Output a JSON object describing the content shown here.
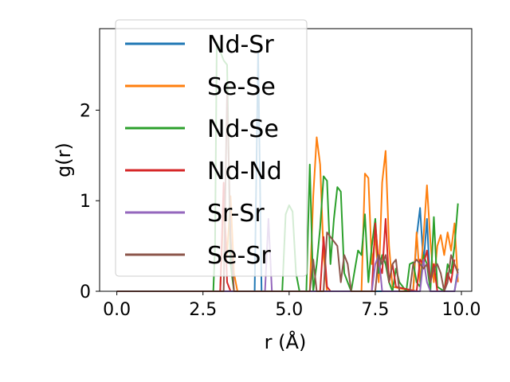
{
  "chart_data": {
    "type": "line",
    "title": "",
    "xlabel": "r (Å)",
    "ylabel": "g(r)",
    "xlim": [
      -0.5,
      10.3
    ],
    "ylim": [
      0,
      2.9
    ],
    "xticks": [
      0.0,
      2.5,
      5.0,
      7.5,
      10.0
    ],
    "xtick_labels": [
      "0.0",
      "2.5",
      "5.0",
      "7.5",
      "10.0"
    ],
    "yticks": [
      0,
      1,
      2
    ],
    "ytick_labels": [
      "0",
      "1",
      "2"
    ],
    "grid": false,
    "legend_position": "upper-left",
    "series": [
      {
        "name": "Nd-Sr",
        "color": "#1f77b4",
        "points": [
          [
            0,
            0
          ],
          [
            4.0,
            0
          ],
          [
            4.1,
            2.65
          ],
          [
            4.2,
            0
          ],
          [
            8.6,
            0
          ],
          [
            8.7,
            0.6
          ],
          [
            8.8,
            0.92
          ],
          [
            8.9,
            0.3
          ],
          [
            9.0,
            0.8
          ],
          [
            9.1,
            0
          ],
          [
            9.8,
            0
          ],
          [
            9.9,
            0.25
          ]
        ]
      },
      {
        "name": "Se-Se",
        "color": "#ff7f0e",
        "points": [
          [
            0,
            0
          ],
          [
            3.0,
            0
          ],
          [
            3.1,
            0.95
          ],
          [
            3.2,
            0.4
          ],
          [
            3.3,
            1.05
          ],
          [
            3.4,
            0.2
          ],
          [
            3.5,
            0
          ],
          [
            5.6,
            0
          ],
          [
            5.7,
            1.05
          ],
          [
            5.8,
            1.7
          ],
          [
            5.9,
            1.4
          ],
          [
            6.0,
            0.4
          ],
          [
            6.1,
            0
          ],
          [
            7.1,
            0
          ],
          [
            7.2,
            1.3
          ],
          [
            7.3,
            1.25
          ],
          [
            7.4,
            0.3
          ],
          [
            7.5,
            0.6
          ],
          [
            7.6,
            0.1
          ],
          [
            7.7,
            1.2
          ],
          [
            7.8,
            1.55
          ],
          [
            7.9,
            0.5
          ],
          [
            8.0,
            0.05
          ],
          [
            8.6,
            0
          ],
          [
            8.7,
            0.65
          ],
          [
            8.8,
            0.1
          ],
          [
            8.9,
            0.6
          ],
          [
            9.0,
            1.17
          ],
          [
            9.1,
            0.55
          ],
          [
            9.2,
            0.1
          ],
          [
            9.3,
            0.5
          ],
          [
            9.4,
            0.62
          ],
          [
            9.5,
            0.4
          ],
          [
            9.6,
            0.65
          ],
          [
            9.7,
            0.45
          ],
          [
            9.8,
            0.75
          ],
          [
            9.9,
            0.1
          ]
        ]
      },
      {
        "name": "Nd-Se",
        "color": "#2ca02c",
        "points": [
          [
            0,
            0
          ],
          [
            2.8,
            0
          ],
          [
            2.85,
            0.5
          ],
          [
            2.9,
            2.75
          ],
          [
            3.0,
            2.65
          ],
          [
            3.1,
            2.55
          ],
          [
            3.2,
            2.5
          ],
          [
            3.3,
            0.3
          ],
          [
            3.4,
            0
          ],
          [
            4.8,
            0
          ],
          [
            4.9,
            0.85
          ],
          [
            5.0,
            0.95
          ],
          [
            5.1,
            0.88
          ],
          [
            5.2,
            0.2
          ],
          [
            5.3,
            0
          ],
          [
            5.5,
            0
          ],
          [
            5.6,
            1.4
          ],
          [
            5.7,
            0
          ],
          [
            5.8,
            0.3
          ],
          [
            5.9,
            0.7
          ],
          [
            6.0,
            1.27
          ],
          [
            6.1,
            1.22
          ],
          [
            6.2,
            0.3
          ],
          [
            6.3,
            0.8
          ],
          [
            6.4,
            1.15
          ],
          [
            6.5,
            1.1
          ],
          [
            6.6,
            0.2
          ],
          [
            6.8,
            0
          ],
          [
            7.0,
            0.45
          ],
          [
            7.1,
            0.4
          ],
          [
            7.2,
            0.85
          ],
          [
            7.3,
            0.1
          ],
          [
            7.4,
            0.5
          ],
          [
            7.5,
            0.8
          ],
          [
            7.6,
            0.2
          ],
          [
            7.7,
            0.4
          ],
          [
            7.8,
            0.3
          ],
          [
            7.9,
            0.1
          ],
          [
            8.0,
            0
          ],
          [
            8.1,
            0.25
          ],
          [
            8.2,
            0.1
          ],
          [
            8.4,
            0
          ],
          [
            8.5,
            0.3
          ],
          [
            8.6,
            0.32
          ],
          [
            8.7,
            0.1
          ],
          [
            8.8,
            0.05
          ],
          [
            8.9,
            0.4
          ],
          [
            9.0,
            0.3
          ],
          [
            9.1,
            0
          ],
          [
            9.2,
            0.82
          ],
          [
            9.3,
            0.05
          ],
          [
            9.5,
            0
          ],
          [
            9.6,
            0.3
          ],
          [
            9.7,
            0.2
          ],
          [
            9.8,
            0.5
          ],
          [
            9.9,
            0.97
          ]
        ]
      },
      {
        "name": "Nd-Nd",
        "color": "#d62728",
        "points": [
          [
            0,
            0
          ],
          [
            3.0,
            0
          ],
          [
            3.1,
            1.2
          ],
          [
            3.2,
            0.1
          ],
          [
            3.3,
            0
          ],
          [
            5.9,
            0
          ],
          [
            6.0,
            0.6
          ],
          [
            6.1,
            0.05
          ],
          [
            6.2,
            0
          ],
          [
            7.4,
            0
          ],
          [
            7.5,
            0.75
          ],
          [
            7.6,
            0.3
          ],
          [
            7.7,
            0.2
          ],
          [
            7.8,
            0.8
          ],
          [
            7.9,
            0.1
          ],
          [
            8.0,
            0.3
          ],
          [
            8.1,
            0.05
          ],
          [
            8.7,
            0
          ],
          [
            8.8,
            0.35
          ],
          [
            8.9,
            0.3
          ],
          [
            9.0,
            0.45
          ],
          [
            9.1,
            0.1
          ],
          [
            9.2,
            0.3
          ],
          [
            9.3,
            0
          ],
          [
            9.5,
            0
          ],
          [
            9.6,
            0.2
          ],
          [
            9.7,
            0.1
          ],
          [
            9.8,
            0.35
          ]
        ]
      },
      {
        "name": "Sr-Sr",
        "color": "#9467bd",
        "points": [
          [
            0,
            0
          ],
          [
            4.3,
            0
          ],
          [
            4.4,
            0.8
          ],
          [
            4.5,
            0
          ],
          [
            7.4,
            0
          ],
          [
            7.5,
            0.3
          ],
          [
            7.6,
            0.4
          ],
          [
            7.7,
            0
          ],
          [
            8.8,
            0
          ],
          [
            8.9,
            0.35
          ],
          [
            9.0,
            0.1
          ],
          [
            9.1,
            0
          ],
          [
            9.8,
            0
          ],
          [
            9.9,
            0.2
          ]
        ]
      },
      {
        "name": "Se-Sr",
        "color": "#8c564b",
        "points": [
          [
            0,
            0
          ],
          [
            3.1,
            0
          ],
          [
            3.2,
            2.2
          ],
          [
            3.3,
            0.6
          ],
          [
            3.4,
            0
          ],
          [
            5.6,
            0
          ],
          [
            5.7,
            0.35
          ],
          [
            5.8,
            0
          ],
          [
            6.0,
            0
          ],
          [
            6.1,
            0.65
          ],
          [
            6.2,
            0.6
          ],
          [
            6.3,
            0.55
          ],
          [
            6.4,
            0.5
          ],
          [
            6.5,
            0.1
          ],
          [
            6.6,
            0.4
          ],
          [
            6.7,
            0.3
          ],
          [
            6.8,
            0
          ],
          [
            7.5,
            0
          ],
          [
            7.6,
            0.4
          ],
          [
            7.7,
            0.3
          ],
          [
            7.8,
            0.4
          ],
          [
            7.9,
            0.1
          ],
          [
            8.0,
            0.3
          ],
          [
            8.1,
            0.35
          ],
          [
            8.2,
            0
          ],
          [
            8.5,
            0
          ],
          [
            8.6,
            0.3
          ],
          [
            8.7,
            0.35
          ],
          [
            8.8,
            0.3
          ],
          [
            8.9,
            0.25
          ],
          [
            9.0,
            0.3
          ],
          [
            9.1,
            0.1
          ],
          [
            9.2,
            0.25
          ],
          [
            9.3,
            0.3
          ],
          [
            9.4,
            0.2
          ],
          [
            9.5,
            0
          ],
          [
            9.6,
            0.1
          ],
          [
            9.7,
            0.4
          ],
          [
            9.8,
            0.3
          ],
          [
            9.9,
            0.2
          ]
        ]
      }
    ]
  }
}
